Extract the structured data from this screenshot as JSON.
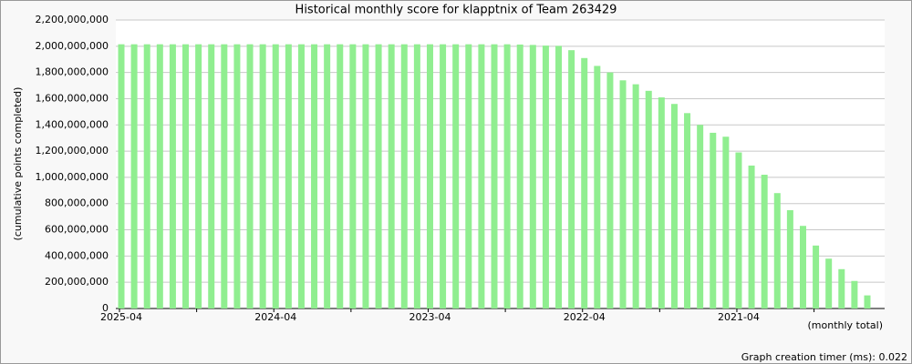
{
  "chart_data": {
    "type": "bar",
    "title": "Historical monthly score for klapptnix of Team 263429",
    "y_label": "(cumulative points completed)",
    "x_label": "(monthly total)",
    "footer": "Graph creation timer (ms): 0.022",
    "color": "#90ee90",
    "grid": true,
    "categories": [
      "2025-04",
      null,
      null,
      null,
      null,
      null,
      null,
      null,
      null,
      null,
      null,
      null,
      "2024-04",
      null,
      null,
      null,
      null,
      null,
      null,
      null,
      null,
      null,
      null,
      null,
      "2023-04",
      null,
      null,
      null,
      null,
      null,
      null,
      null,
      null,
      null,
      null,
      null,
      "2022-04",
      null,
      null,
      null,
      null,
      null,
      null,
      null,
      null,
      null,
      null,
      null,
      "2021-04",
      null,
      null,
      null,
      null,
      null,
      null,
      null,
      null,
      null,
      null
    ],
    "values": [
      2015000000,
      2015000000,
      2015000000,
      2015000000,
      2015000000,
      2015000000,
      2015000000,
      2015000000,
      2015000000,
      2015000000,
      2015000000,
      2015000000,
      2015000000,
      2015000000,
      2015000000,
      2015000000,
      2015000000,
      2015000000,
      2015000000,
      2015000000,
      2015000000,
      2015000000,
      2015000000,
      2015000000,
      2015000000,
      2015000000,
      2015000000,
      2015000000,
      2015000000,
      2015000000,
      2015000000,
      2013000000,
      2010000000,
      2005000000,
      2003000000,
      1970000000,
      1910000000,
      1850000000,
      1800000000,
      1740000000,
      1710000000,
      1660000000,
      1610000000,
      1560000000,
      1490000000,
      1400000000,
      1340000000,
      1310000000,
      1190000000,
      1090000000,
      1020000000,
      880000000,
      750000000,
      630000000,
      480000000,
      380000000,
      300000000,
      210000000,
      100000000
    ],
    "ylim": [
      0,
      2200000000
    ],
    "yticks": [
      {
        "value": 0,
        "label": "0"
      },
      {
        "value": 200000000,
        "label": "200,000,000"
      },
      {
        "value": 400000000,
        "label": "400,000,000"
      },
      {
        "value": 600000000,
        "label": "600,000,000"
      },
      {
        "value": 800000000,
        "label": "800,000,000"
      },
      {
        "value": 1000000000,
        "label": "1,000,000,000"
      },
      {
        "value": 1200000000,
        "label": "1,200,000,000"
      },
      {
        "value": 1400000000,
        "label": "1,400,000,000"
      },
      {
        "value": 1600000000,
        "label": "1,600,000,000"
      },
      {
        "value": 1800000000,
        "label": "1,800,000,000"
      },
      {
        "value": 2000000000,
        "label": "2,000,000,000"
      },
      {
        "value": 2200000000,
        "label": "2,200,000,000"
      }
    ]
  }
}
